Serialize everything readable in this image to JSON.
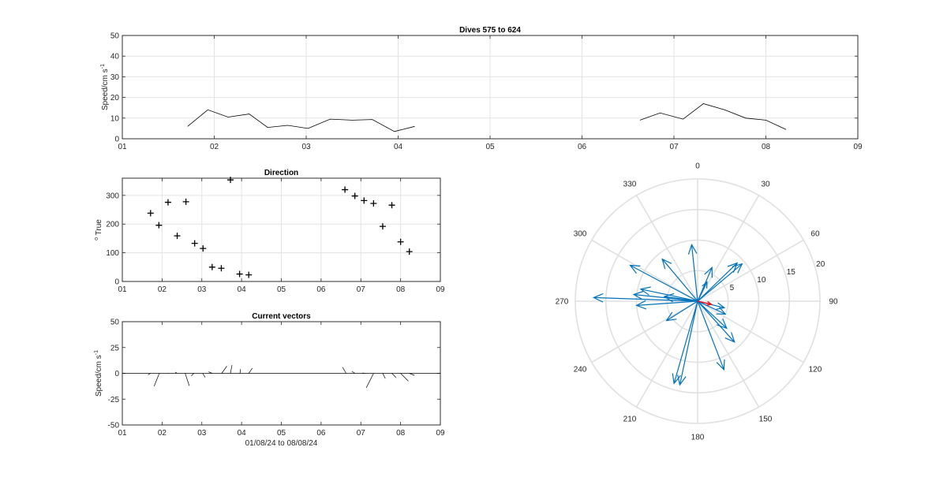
{
  "chart_data": [
    {
      "type": "line",
      "title": "Dives 575 to 624",
      "ylabel": "Speed/cm s",
      "ylabel_sup": "-1",
      "xlim": [
        1,
        9
      ],
      "ylim": [
        0,
        50
      ],
      "x_ticks": [
        "01",
        "02",
        "03",
        "04",
        "05",
        "06",
        "07",
        "08",
        "09"
      ],
      "y_ticks": [
        "0",
        "10",
        "20",
        "30",
        "40",
        "50"
      ],
      "grid": true,
      "series": [
        {
          "segments": [
            [
              [
                1.71,
                6
              ],
              [
                1.93,
                14
              ],
              [
                2.15,
                10.5
              ],
              [
                2.38,
                12
              ],
              [
                2.58,
                5.5
              ],
              [
                2.8,
                6.5
              ],
              [
                3.02,
                5
              ],
              [
                3.26,
                9.5
              ],
              [
                3.5,
                9
              ],
              [
                3.72,
                9.3
              ],
              [
                3.96,
                3.5
              ],
              [
                4.18,
                6
              ]
            ],
            [
              [
                6.63,
                9
              ],
              [
                6.85,
                12.5
              ],
              [
                7.1,
                9.5
              ],
              [
                7.32,
                17
              ],
              [
                7.55,
                14
              ],
              [
                7.78,
                10
              ],
              [
                8.0,
                9
              ],
              [
                8.22,
                4.5
              ]
            ]
          ],
          "color": "#000000"
        }
      ]
    },
    {
      "type": "scatter",
      "title": "Direction",
      "ylabel": "True",
      "ylabel_degree": "o",
      "xlim": [
        1,
        9
      ],
      "ylim": [
        0,
        360
      ],
      "x_ticks": [
        "01",
        "02",
        "03",
        "04",
        "05",
        "06",
        "07",
        "08",
        "09"
      ],
      "y_ticks": [
        "0",
        "100",
        "200",
        "300"
      ],
      "grid": true,
      "marker": "+",
      "points": [
        [
          1.71,
          238
        ],
        [
          1.92,
          196
        ],
        [
          2.15,
          276
        ],
        [
          2.38,
          159
        ],
        [
          2.6,
          278
        ],
        [
          2.82,
          133
        ],
        [
          3.03,
          115
        ],
        [
          3.26,
          50
        ],
        [
          3.49,
          46
        ],
        [
          3.72,
          354
        ],
        [
          3.95,
          26
        ],
        [
          4.18,
          23
        ],
        [
          6.6,
          320
        ],
        [
          6.85,
          298
        ],
        [
          7.08,
          282
        ],
        [
          7.32,
          272
        ],
        [
          7.55,
          192
        ],
        [
          7.78,
          266
        ],
        [
          8.0,
          138
        ],
        [
          8.22,
          104
        ]
      ]
    },
    {
      "type": "line",
      "title": "Current vectors",
      "ylabel": "Speed/cm s",
      "ylabel_sup": "-1",
      "xlabel": "01/08/24 to 08/08/24",
      "xlim": [
        1,
        9
      ],
      "ylim": [
        -50,
        50
      ],
      "x_ticks": [
        "01",
        "02",
        "03",
        "04",
        "05",
        "06",
        "07",
        "08",
        "09"
      ],
      "y_ticks": [
        "-50",
        "-25",
        "0",
        "25",
        "50"
      ],
      "grid": false,
      "sticks": [
        [
          1.71,
          -2.5,
          -1.5
        ],
        [
          1.93,
          -5,
          -12.5
        ],
        [
          2.15,
          0,
          -0.5
        ],
        [
          2.38,
          -2,
          1.2
        ],
        [
          2.58,
          4,
          -12
        ],
        [
          2.8,
          -2.5,
          -2.5
        ],
        [
          3.02,
          2.5,
          -4
        ],
        [
          3.26,
          -3.5,
          1.5
        ],
        [
          3.5,
          5,
          7
        ],
        [
          3.72,
          1.5,
          8
        ],
        [
          3.96,
          0.5,
          4
        ],
        [
          4.18,
          3.5,
          5
        ],
        [
          6.63,
          -3.5,
          6
        ],
        [
          6.85,
          -3,
          2
        ],
        [
          7.1,
          -2.3,
          0.3
        ],
        [
          7.32,
          -7,
          -14
        ],
        [
          7.55,
          2.5,
          -5
        ],
        [
          7.78,
          4,
          -4
        ],
        [
          8.0,
          7.5,
          -7.5
        ],
        [
          8.22,
          5,
          -2
        ]
      ]
    },
    {
      "type": "polar",
      "angle_ticks": [
        "0",
        "30",
        "60",
        "90",
        "120",
        "150",
        "180",
        "210",
        "240",
        "270",
        "300",
        "330"
      ],
      "radial_ticks": [
        "5",
        "10",
        "15",
        "20"
      ],
      "rlim": [
        0,
        20
      ],
      "vectors": [
        [
          238,
          6
        ],
        [
          196,
          14
        ],
        [
          276,
          10.5
        ],
        [
          159,
          12
        ],
        [
          278,
          5.5
        ],
        [
          133,
          6.5
        ],
        [
          115,
          5
        ],
        [
          50,
          9.5
        ],
        [
          46,
          9
        ],
        [
          354,
          9.3
        ],
        [
          26,
          3.5
        ],
        [
          23,
          6
        ],
        [
          320,
          9
        ],
        [
          298,
          12.5
        ],
        [
          282,
          9.5
        ],
        [
          272,
          17
        ],
        [
          192,
          14
        ],
        [
          266,
          10
        ],
        [
          138,
          9
        ],
        [
          104,
          4.5
        ]
      ],
      "vector_color": "#0072bd",
      "mean_vector": [
        103,
        2.3
      ],
      "mean_color": "#e8101d"
    }
  ]
}
